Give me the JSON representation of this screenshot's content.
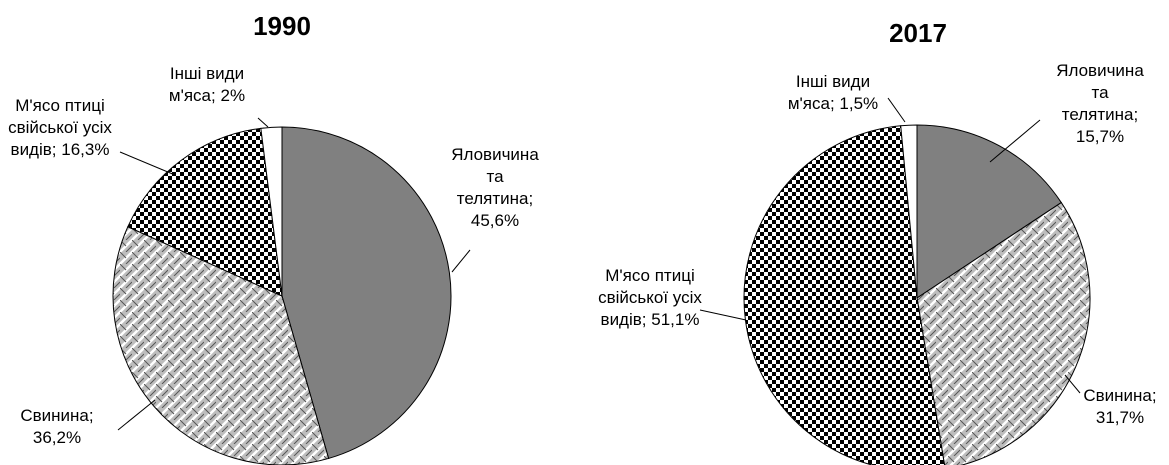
{
  "chart_data": [
    {
      "type": "pie",
      "title": "1990",
      "label_separator": ";",
      "categories": [
        "Яловичина та телятина",
        "Свинина",
        "М'ясо птиці свійської усіх видів",
        "Інші види м'яса"
      ],
      "values": [
        45.6,
        36.2,
        16.3,
        2
      ],
      "value_labels": [
        "45,6%",
        "36,2%",
        "16,3%",
        "2%"
      ],
      "colors": [
        "#808080",
        "#bdbdbd",
        "#000000",
        "#ffffff"
      ],
      "patterns": [
        "solid",
        "weave",
        "checker",
        "solid"
      ]
    },
    {
      "type": "pie",
      "title": "2017",
      "label_separator": ";",
      "categories": [
        "Яловичина та телятина",
        "Свинина",
        "М'ясо птиці свійської усіх видів",
        "Інші види м'яса"
      ],
      "values": [
        15.7,
        31.7,
        51.1,
        1.5
      ],
      "value_labels": [
        "15,7%",
        "31,7%",
        "51,1%",
        "1,5%"
      ],
      "colors": [
        "#808080",
        "#bdbdbd",
        "#000000",
        "#ffffff"
      ],
      "patterns": [
        "solid",
        "weave",
        "checker",
        "solid"
      ]
    }
  ]
}
